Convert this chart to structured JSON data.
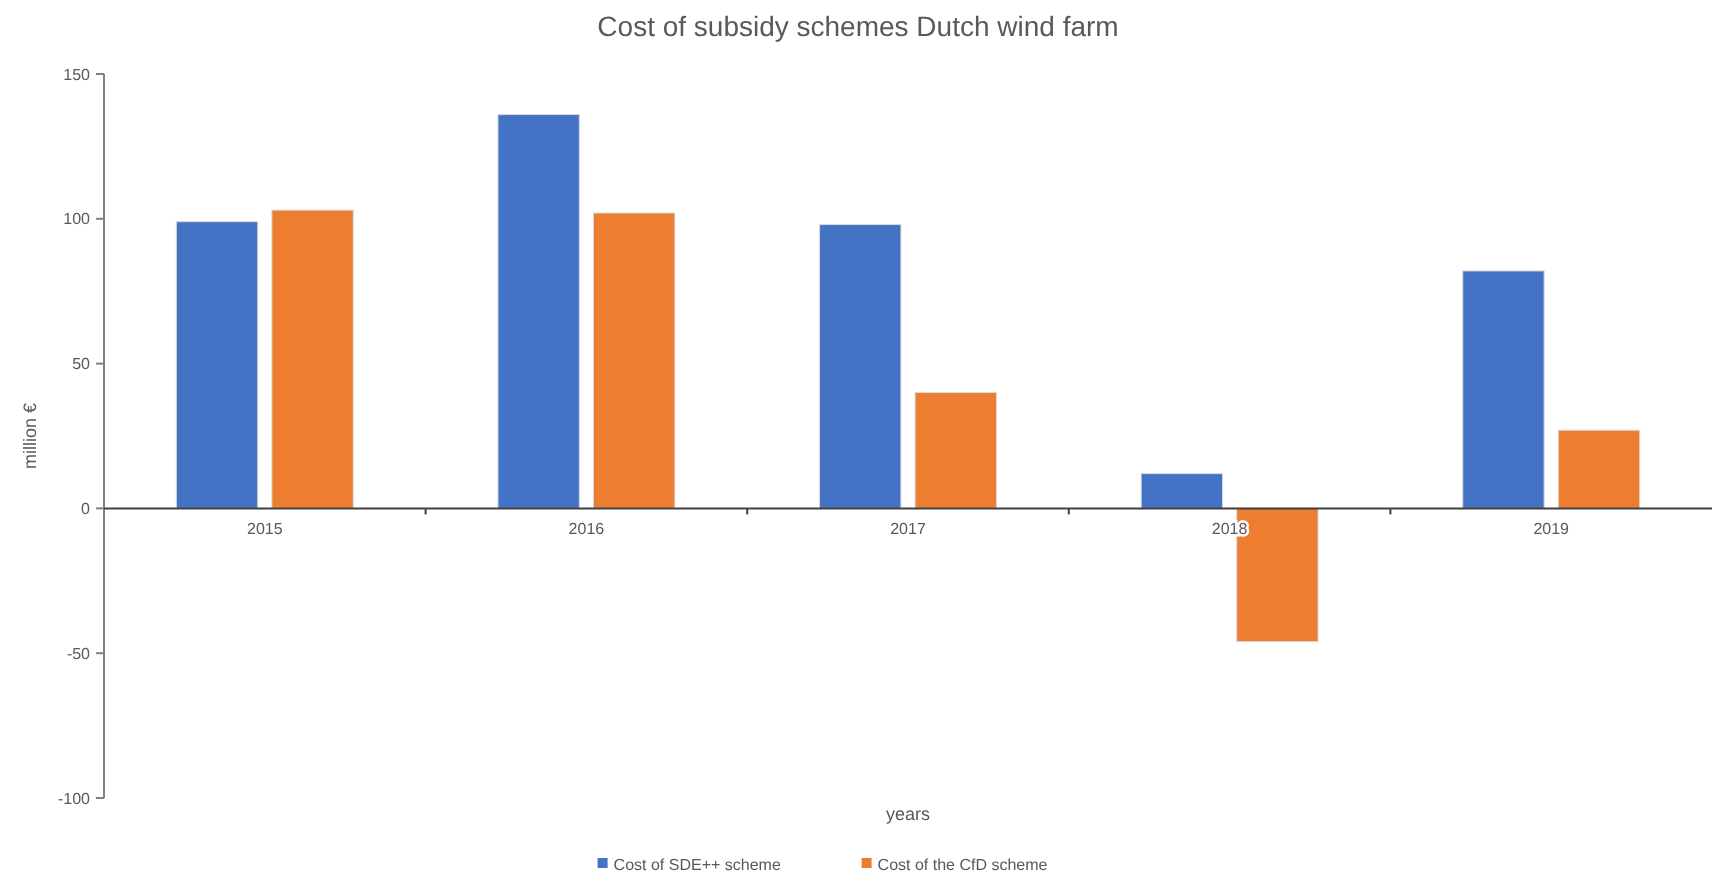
{
  "chart_data": {
    "type": "bar",
    "title": "Cost of subsidy schemes Dutch wind farm",
    "xlabel": "years",
    "ylabel": "million €",
    "categories": [
      "2015",
      "2016",
      "2017",
      "2018",
      "2019"
    ],
    "series": [
      {
        "name": "Cost of SDE++ scheme",
        "color": "#4472c4",
        "values": [
          99,
          136,
          98,
          12,
          82
        ]
      },
      {
        "name": "Cost of the CfD scheme",
        "color": "#ed7d31",
        "values": [
          103,
          102,
          40,
          -46,
          27
        ]
      }
    ],
    "ylim": [
      -100,
      150
    ],
    "yticks": [
      -100,
      -50,
      0,
      50,
      100,
      150
    ],
    "grid": false,
    "legend": "bottom"
  }
}
